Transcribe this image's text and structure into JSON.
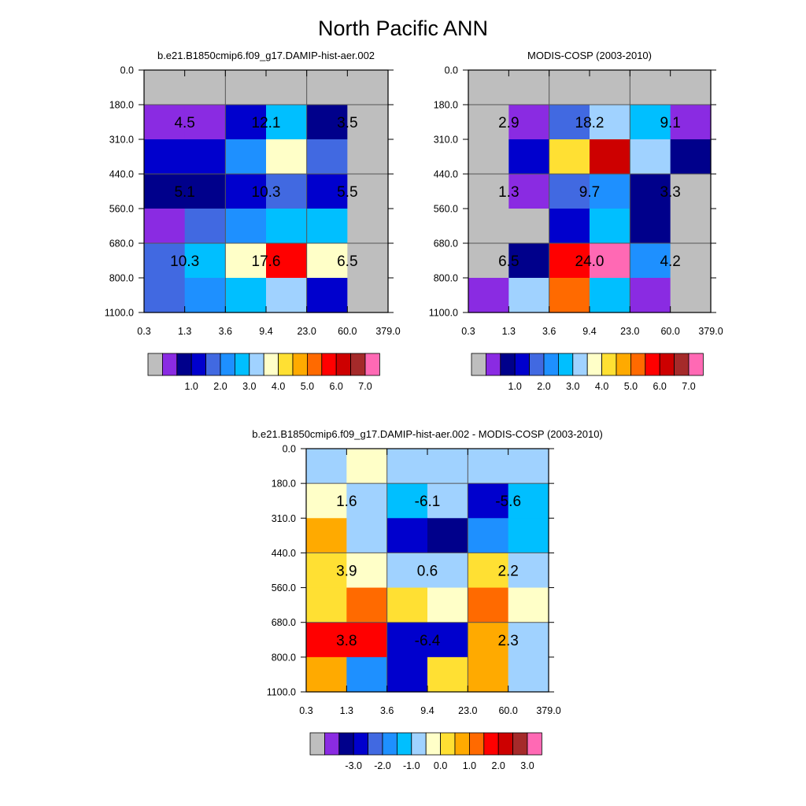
{
  "title": "North Pacific ANN",
  "colors": {
    "abs_palette": [
      "#bebebe",
      "#8a2be2",
      "#00008b",
      "#0000cd",
      "#4169e1",
      "#1e90ff",
      "#00bfff",
      "#a0d2ff",
      "#ffffc8",
      "#ffe033",
      "#ffaa00",
      "#ff6a00",
      "#ff0000",
      "#cd0000",
      "#a52a2a",
      "#ff69b4"
    ],
    "diff_palette": [
      "#bebebe",
      "#8a2be2",
      "#00008b",
      "#0000cd",
      "#4169e1",
      "#1e90ff",
      "#00bfff",
      "#a0d2ff",
      "#ffffc8",
      "#ffe033",
      "#ffaa00",
      "#ff6a00",
      "#ff0000",
      "#cd0000",
      "#a52a2a",
      "#ff69b4"
    ]
  },
  "chart_data": [
    {
      "type": "heatmap",
      "title": "b.e21.B1850cmip6.f09_g17.DAMIP-hist-aer.002",
      "x_ticks": [
        "0.3",
        "1.3",
        "3.6",
        "9.4",
        "23.0",
        "60.0",
        "379.0"
      ],
      "y_ticks": [
        "0.0",
        "180.0",
        "310.0",
        "440.0",
        "560.0",
        "680.0",
        "800.0",
        "1100.0"
      ],
      "cell_color_index": [
        [
          0,
          0,
          0,
          0,
          0,
          0
        ],
        [
          1,
          1,
          3,
          6,
          2,
          0
        ],
        [
          3,
          3,
          5,
          8,
          4,
          0
        ],
        [
          2,
          2,
          3,
          4,
          3,
          0
        ],
        [
          1,
          4,
          5,
          6,
          6,
          0
        ],
        [
          4,
          6,
          8,
          12,
          8,
          0
        ],
        [
          4,
          5,
          6,
          7,
          3,
          0
        ]
      ],
      "annotations": [
        {
          "text": "4.5",
          "col": 0,
          "row": 1
        },
        {
          "text": "12.1",
          "col": 2,
          "row": 1
        },
        {
          "text": "3.5",
          "col": 4,
          "row": 1
        },
        {
          "text": "5.1",
          "col": 0,
          "row": 3
        },
        {
          "text": "10.3",
          "col": 2,
          "row": 3
        },
        {
          "text": "5.5",
          "col": 4,
          "row": 3
        },
        {
          "text": "10.3",
          "col": 0,
          "row": 5
        },
        {
          "text": "17.6",
          "col": 2,
          "row": 5
        },
        {
          "text": "6.5",
          "col": 4,
          "row": 5
        }
      ],
      "colorbar": {
        "labels": [
          "1.0",
          "2.0",
          "3.0",
          "4.0",
          "5.0",
          "6.0",
          "7.0"
        ]
      }
    },
    {
      "type": "heatmap",
      "title": "MODIS-COSP (2003-2010)",
      "x_ticks": [
        "0.3",
        "1.3",
        "3.6",
        "9.4",
        "23.0",
        "60.0",
        "379.0"
      ],
      "y_ticks": [
        "0.0",
        "180.0",
        "310.0",
        "440.0",
        "560.0",
        "680.0",
        "800.0",
        "1100.0"
      ],
      "cell_color_index": [
        [
          0,
          0,
          0,
          0,
          0,
          0
        ],
        [
          0,
          1,
          4,
          7,
          6,
          1
        ],
        [
          0,
          3,
          9,
          13,
          7,
          2
        ],
        [
          0,
          1,
          4,
          5,
          2,
          0
        ],
        [
          0,
          0,
          3,
          6,
          2,
          0
        ],
        [
          0,
          2,
          12,
          15,
          5,
          0
        ],
        [
          1,
          7,
          11,
          6,
          1,
          0
        ]
      ],
      "annotations": [
        {
          "text": "2.9",
          "col": 0,
          "row": 1
        },
        {
          "text": "18.2",
          "col": 2,
          "row": 1
        },
        {
          "text": "9.1",
          "col": 4,
          "row": 1
        },
        {
          "text": "1.3",
          "col": 0,
          "row": 3
        },
        {
          "text": "9.7",
          "col": 2,
          "row": 3
        },
        {
          "text": "3.3",
          "col": 4,
          "row": 3
        },
        {
          "text": "6.5",
          "col": 0,
          "row": 5
        },
        {
          "text": "24.0",
          "col": 2,
          "row": 5
        },
        {
          "text": "4.2",
          "col": 4,
          "row": 5
        }
      ],
      "colorbar": {
        "labels": [
          "1.0",
          "2.0",
          "3.0",
          "4.0",
          "5.0",
          "6.0",
          "7.0"
        ]
      }
    },
    {
      "type": "heatmap",
      "title": "b.e21.B1850cmip6.f09_g17.DAMIP-hist-aer.002 - MODIS-COSP (2003-2010)",
      "x_ticks": [
        "0.3",
        "1.3",
        "3.6",
        "9.4",
        "23.0",
        "60.0",
        "379.0"
      ],
      "y_ticks": [
        "0.0",
        "180.0",
        "310.0",
        "440.0",
        "560.0",
        "680.0",
        "800.0",
        "1100.0"
      ],
      "cell_color_index": [
        [
          7,
          8,
          7,
          7,
          7,
          7
        ],
        [
          8,
          7,
          6,
          7,
          3,
          6
        ],
        [
          10,
          7,
          3,
          2,
          5,
          6
        ],
        [
          9,
          8,
          7,
          7,
          9,
          7
        ],
        [
          9,
          11,
          9,
          8,
          11,
          8
        ],
        [
          12,
          12,
          3,
          3,
          10,
          7
        ],
        [
          10,
          5,
          3,
          9,
          10,
          7
        ]
      ],
      "annotations": [
        {
          "text": "1.6",
          "col": 0,
          "row": 1
        },
        {
          "text": "-6.1",
          "col": 2,
          "row": 1
        },
        {
          "text": "-5.6",
          "col": 4,
          "row": 1
        },
        {
          "text": "3.9",
          "col": 0,
          "row": 3
        },
        {
          "text": "0.6",
          "col": 2,
          "row": 3
        },
        {
          "text": "2.2",
          "col": 4,
          "row": 3
        },
        {
          "text": "3.8",
          "col": 0,
          "row": 5
        },
        {
          "text": "-6.4",
          "col": 2,
          "row": 5
        },
        {
          "text": "2.3",
          "col": 4,
          "row": 5
        }
      ],
      "colorbar": {
        "labels": [
          "-3.0",
          "-2.0",
          "-1.0",
          "0.0",
          "1.0",
          "2.0",
          "3.0"
        ]
      }
    }
  ]
}
